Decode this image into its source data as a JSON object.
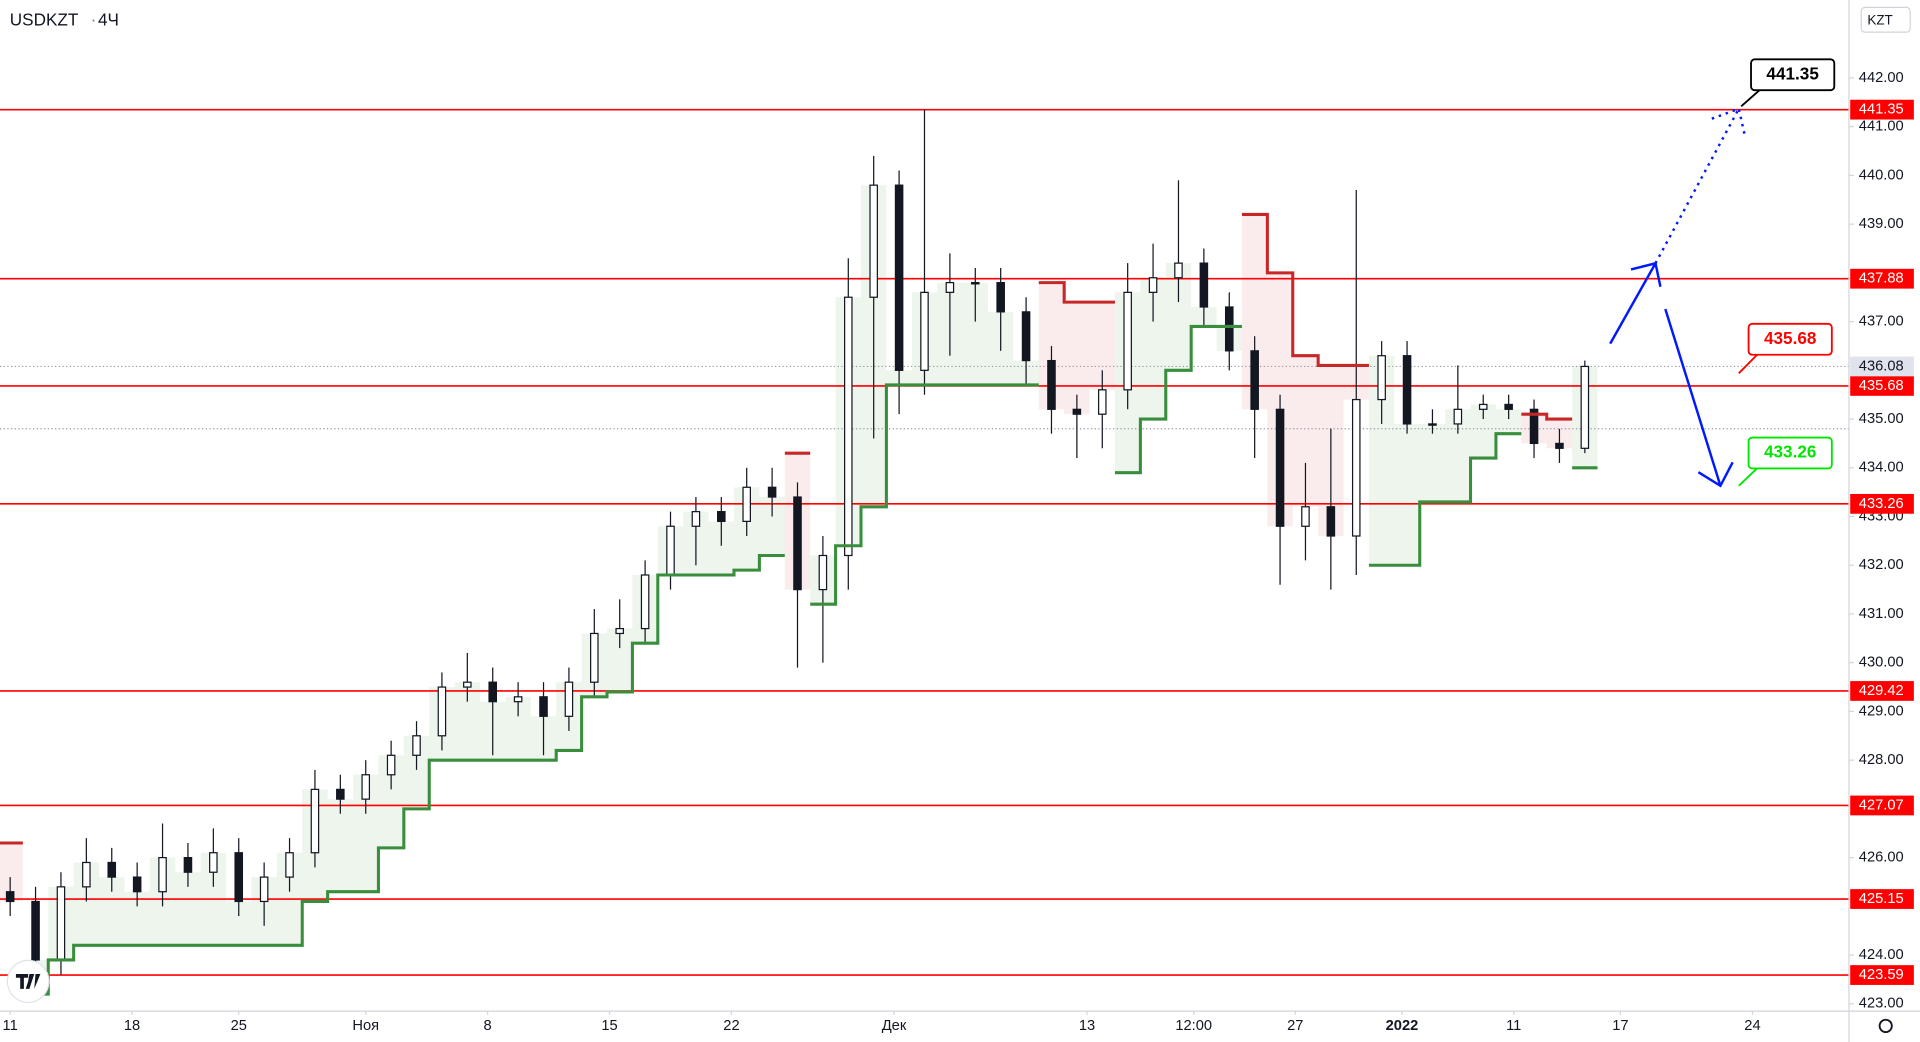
{
  "symbol": "USDKZT",
  "interval": "4Ч",
  "currency": "KZT",
  "chart_data": {
    "type": "candlestick",
    "x": [
      2,
      7,
      12,
      17,
      22,
      27,
      32,
      37,
      42,
      47,
      52,
      57,
      62,
      67,
      72,
      77,
      82,
      87,
      92,
      97,
      102,
      107,
      112,
      117,
      122,
      127,
      132,
      137,
      142,
      147,
      152,
      157,
      162,
      167,
      172,
      177,
      182,
      187,
      192,
      197,
      202,
      207,
      212,
      217,
      222,
      227,
      232,
      237,
      242,
      247,
      252,
      257,
      262,
      267,
      272,
      277,
      282,
      287,
      292,
      297,
      302,
      307,
      312
    ],
    "open": [
      425.3,
      425.1,
      423.9,
      425.4,
      425.9,
      425.6,
      425.3,
      426.0,
      425.7,
      426.1,
      425.1,
      425.6,
      426.1,
      427.4,
      427.2,
      427.7,
      428.1,
      428.5,
      429.5,
      429.6,
      429.2,
      429.3,
      428.9,
      429.6,
      430.6,
      430.7,
      431.8,
      432.8,
      433.1,
      432.9,
      433.6,
      433.4,
      431.5,
      432.2,
      437.5,
      439.8,
      436.0,
      437.6,
      437.8,
      437.8,
      437.2,
      436.2,
      435.2,
      435.1,
      435.6,
      437.6,
      437.9,
      438.2,
      437.3,
      436.4,
      435.2,
      432.8,
      433.2,
      432.6,
      435.4,
      436.3,
      434.9,
      434.9,
      435.2,
      435.3,
      435.2,
      434.5,
      434.4
    ],
    "high": [
      425.6,
      425.4,
      425.7,
      426.4,
      426.2,
      425.9,
      426.7,
      426.3,
      426.6,
      426.4,
      425.9,
      426.4,
      427.8,
      427.7,
      428.0,
      428.4,
      428.8,
      429.8,
      430.2,
      429.9,
      429.6,
      429.6,
      429.9,
      431.1,
      431.3,
      432.1,
      433.1,
      433.4,
      433.4,
      434.0,
      434.0,
      433.7,
      432.6,
      438.3,
      440.4,
      440.1,
      441.35,
      438.4,
      438.1,
      438.1,
      437.5,
      436.5,
      435.5,
      436.0,
      438.2,
      438.6,
      439.9,
      438.5,
      437.6,
      436.7,
      435.5,
      434.1,
      434.8,
      439.7,
      436.6,
      436.6,
      435.2,
      436.1,
      435.5,
      435.5,
      435.4,
      434.8,
      436.2
    ],
    "low": [
      424.8,
      423.6,
      423.6,
      425.1,
      425.3,
      425.0,
      425.0,
      425.4,
      425.4,
      424.8,
      424.6,
      425.3,
      425.8,
      426.9,
      426.9,
      427.4,
      427.8,
      428.2,
      429.2,
      428.1,
      428.9,
      428.1,
      428.6,
      429.3,
      430.3,
      430.4,
      431.5,
      432.0,
      432.4,
      432.6,
      433.0,
      429.9,
      430.0,
      431.5,
      434.6,
      435.1,
      435.5,
      436.3,
      437.0,
      436.4,
      435.7,
      434.7,
      434.2,
      434.4,
      435.2,
      437.0,
      437.4,
      436.9,
      436.0,
      434.2,
      431.6,
      432.1,
      431.5,
      431.8,
      434.9,
      434.7,
      434.7,
      434.7,
      435.0,
      435.0,
      434.2,
      434.1,
      434.3
    ],
    "close": [
      425.1,
      423.9,
      425.4,
      425.9,
      425.6,
      425.3,
      426.0,
      425.7,
      426.1,
      425.1,
      425.6,
      426.1,
      427.4,
      427.2,
      427.7,
      428.1,
      428.5,
      429.5,
      429.6,
      429.2,
      429.3,
      428.9,
      429.6,
      430.6,
      430.7,
      431.8,
      432.8,
      433.1,
      432.9,
      433.6,
      433.4,
      431.5,
      432.2,
      437.5,
      439.8,
      436.0,
      437.6,
      437.8,
      437.8,
      437.2,
      436.2,
      435.2,
      435.1,
      435.6,
      437.6,
      437.9,
      438.2,
      437.3,
      436.4,
      435.2,
      432.8,
      433.2,
      432.6,
      435.4,
      436.3,
      434.9,
      434.9,
      435.2,
      435.3,
      435.2,
      434.5,
      434.4,
      436.08
    ],
    "up_color": "#ffffff",
    "down_color": "#131722",
    "supertrend": [
      {
        "color": "#388e3c",
        "values": [
          null,
          423.2,
          423.9,
          424.2,
          424.2,
          424.2,
          424.2,
          424.2,
          424.2,
          424.2,
          424.2,
          424.2,
          425.1,
          425.3,
          425.3,
          426.2,
          427.0,
          428.0,
          428.0,
          428.0,
          428.0,
          428.0,
          428.2,
          429.3,
          429.4,
          430.4,
          431.8,
          431.8,
          431.8,
          431.9,
          432.2,
          null,
          431.2,
          432.4,
          433.2,
          435.7,
          435.7,
          435.7,
          435.7,
          435.7,
          435.7,
          null,
          null,
          null,
          433.9,
          435.0,
          436.0,
          436.9,
          436.9,
          null,
          null,
          null,
          null,
          null,
          432.0,
          432.0,
          433.3,
          433.3,
          434.2,
          434.7,
          null,
          null,
          434.0
        ]
      },
      {
        "color": "#c62828",
        "values": [
          426.3,
          null,
          null,
          null,
          null,
          null,
          null,
          null,
          null,
          null,
          null,
          null,
          null,
          null,
          null,
          null,
          null,
          null,
          null,
          null,
          null,
          null,
          null,
          null,
          null,
          null,
          null,
          null,
          null,
          null,
          null,
          434.3,
          null,
          null,
          null,
          null,
          null,
          null,
          null,
          null,
          null,
          437.8,
          437.4,
          437.4,
          null,
          null,
          null,
          null,
          null,
          439.2,
          438.0,
          436.3,
          436.1,
          436.1,
          null,
          null,
          null,
          null,
          null,
          null,
          435.1,
          435.0,
          null
        ]
      }
    ],
    "levels": [
      441.35,
      437.88,
      435.68,
      433.26,
      429.42,
      427.07,
      425.15,
      423.59
    ],
    "level_color": "#ff0000",
    "last_price": 436.08,
    "reference_line": 434.8,
    "xlim": [
      0,
      364
    ],
    "ylim": [
      422.85,
      443.6
    ],
    "xticks": [
      {
        "value": 2,
        "label": "11"
      },
      {
        "value": 26,
        "label": "18"
      },
      {
        "value": 47,
        "label": "25"
      },
      {
        "value": 72,
        "label": "Ноя"
      },
      {
        "value": 96,
        "label": "8"
      },
      {
        "value": 120,
        "label": "15"
      },
      {
        "value": 144,
        "label": "22"
      },
      {
        "value": 176,
        "label": "Дек"
      },
      {
        "value": 214,
        "label": "13"
      },
      {
        "value": 235,
        "label": "12:00"
      },
      {
        "value": 255,
        "label": "27"
      },
      {
        "value": 276,
        "label": "2022"
      },
      {
        "value": 298,
        "label": "11"
      },
      {
        "value": 319,
        "label": "17"
      },
      {
        "value": 345,
        "label": "24"
      }
    ],
    "yticks": [
      {
        "value": 442,
        "label": "442.00"
      },
      {
        "value": 441,
        "label": "441.00"
      },
      {
        "value": 440,
        "label": "440.00"
      },
      {
        "value": 439,
        "label": "439.00"
      },
      {
        "value": 437,
        "label": "437.00"
      },
      {
        "value": 435,
        "label": "435.00"
      },
      {
        "value": 434,
        "label": "434.00"
      },
      {
        "value": 433,
        "label": "433.00"
      },
      {
        "value": 432,
        "label": "432.00"
      },
      {
        "value": 431,
        "label": "431.00"
      },
      {
        "value": 430,
        "label": "430.00"
      },
      {
        "value": 429,
        "label": "429.00"
      },
      {
        "value": 428,
        "label": "428.00"
      },
      {
        "value": 426,
        "label": "426.00"
      },
      {
        "value": 424,
        "label": "424.00"
      },
      {
        "value": 423,
        "label": "423.00"
      }
    ],
    "annotations": [
      {
        "text": "441.35",
        "color": "#000000"
      },
      {
        "text": "435.68",
        "color": "#ff0000"
      },
      {
        "text": "433.26",
        "color": "#00e600"
      }
    ]
  }
}
